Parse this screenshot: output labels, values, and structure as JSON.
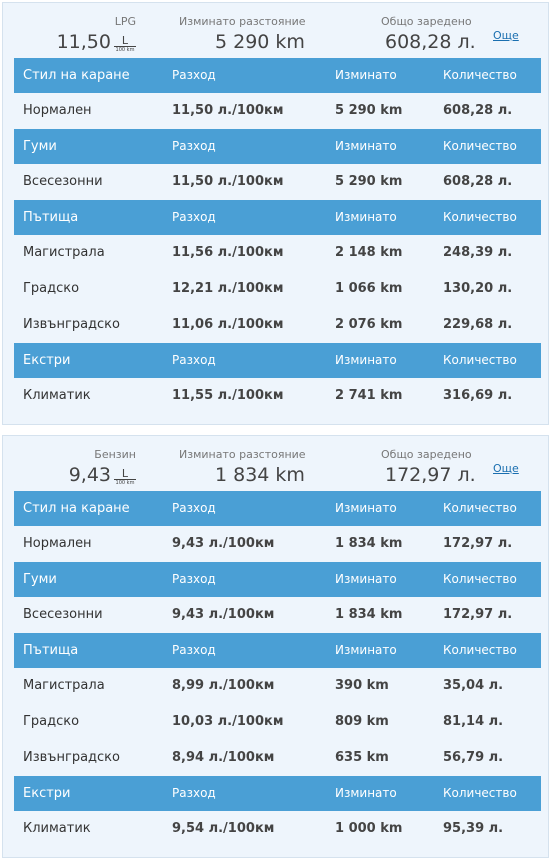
{
  "panels": [
    {
      "fuel": "LPG",
      "consumption": "11,50",
      "unit_top": "L",
      "unit_bottom": "100 km",
      "distance_label": "Изминато разстояние",
      "distance": "5 290 km",
      "total_label": "Общо заредено",
      "total": "608,28 л.",
      "more": "Още",
      "sections": [
        {
          "header": [
            "Стил на каране",
            "Разход",
            "Изминато",
            "Количество"
          ],
          "rows": [
            [
              "Нормален",
              "11,50 л./100км",
              "5 290 km",
              "608,28 л."
            ]
          ]
        },
        {
          "header": [
            "Гуми",
            "Разход",
            "Изминато",
            "Количество"
          ],
          "rows": [
            [
              "Всесезонни",
              "11,50 л./100км",
              "5 290 km",
              "608,28 л."
            ]
          ]
        },
        {
          "header": [
            "Пътища",
            "Разход",
            "Изминато",
            "Количество"
          ],
          "rows": [
            [
              "Магистрала",
              "11,56 л./100км",
              "2 148 km",
              "248,39 л."
            ],
            [
              "Градско",
              "12,21 л./100км",
              "1 066 km",
              "130,20 л."
            ],
            [
              "Извънградско",
              "11,06 л./100км",
              "2 076 km",
              "229,68 л."
            ]
          ]
        },
        {
          "header": [
            "Екстри",
            "Разход",
            "Изминато",
            "Количество"
          ],
          "rows": [
            [
              "Климатик",
              "11,55 л./100км",
              "2 741 km",
              "316,69 л."
            ]
          ]
        }
      ]
    },
    {
      "fuel": "Бензин",
      "consumption": "9,43",
      "unit_top": "L",
      "unit_bottom": "100 km",
      "distance_label": "Изминато разстояние",
      "distance": "1 834 km",
      "total_label": "Общо заредено",
      "total": "172,97 л.",
      "more": "Още",
      "sections": [
        {
          "header": [
            "Стил на каране",
            "Разход",
            "Изминато",
            "Количество"
          ],
          "rows": [
            [
              "Нормален",
              "9,43 л./100км",
              "1 834 km",
              "172,97 л."
            ]
          ]
        },
        {
          "header": [
            "Гуми",
            "Разход",
            "Изминато",
            "Количество"
          ],
          "rows": [
            [
              "Всесезонни",
              "9,43 л./100км",
              "1 834 km",
              "172,97 л."
            ]
          ]
        },
        {
          "header": [
            "Пътища",
            "Разход",
            "Изминато",
            "Количество"
          ],
          "rows": [
            [
              "Магистрала",
              "8,99 л./100км",
              "390 km",
              "35,04 л."
            ],
            [
              "Градско",
              "10,03 л./100км",
              "809 km",
              "81,14 л."
            ],
            [
              "Извънградско",
              "8,94 л./100км",
              "635 km",
              "56,79 л."
            ]
          ]
        },
        {
          "header": [
            "Екстри",
            "Разход",
            "Изминато",
            "Количество"
          ],
          "rows": [
            [
              "Климатик",
              "9,54 л./100км",
              "1 000 km",
              "95,39 л."
            ]
          ]
        }
      ]
    }
  ]
}
